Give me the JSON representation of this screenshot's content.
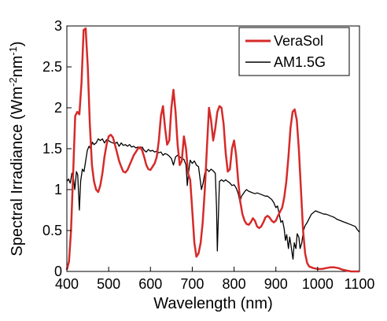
{
  "chart_data": {
    "type": "line",
    "xlabel": "Wavelength (nm)",
    "ylabel_parts": {
      "main": "Spectral Irradiance (Wm",
      "sup1": "-2",
      "mid": "nm",
      "sup2": "-1",
      "end": ")"
    },
    "xlim": [
      400,
      1100
    ],
    "ylim": [
      0,
      3
    ],
    "xticks": [
      400,
      500,
      600,
      700,
      800,
      900,
      1000,
      1100
    ],
    "yticks": [
      0,
      0.5,
      1,
      1.5,
      2,
      2.5,
      3
    ],
    "ytick_labels": [
      "0",
      "0.5",
      "1",
      "1.5",
      "2",
      "2.5",
      "3"
    ],
    "legend_position": "top-right",
    "grid": false,
    "series": [
      {
        "name": "VeraSol",
        "color": "#d62a2a",
        "points": [
          [
            400,
            0.02
          ],
          [
            405,
            0.12
          ],
          [
            410,
            0.5
          ],
          [
            415,
            1.2
          ],
          [
            420,
            1.9
          ],
          [
            425,
            1.95
          ],
          [
            430,
            1.92
          ],
          [
            435,
            2.3
          ],
          [
            440,
            2.95
          ],
          [
            445,
            2.97
          ],
          [
            450,
            2.5
          ],
          [
            455,
            1.8
          ],
          [
            460,
            1.3
          ],
          [
            465,
            1.1
          ],
          [
            470,
            1.0
          ],
          [
            475,
            0.97
          ],
          [
            480,
            1.05
          ],
          [
            485,
            1.2
          ],
          [
            490,
            1.4
          ],
          [
            495,
            1.55
          ],
          [
            500,
            1.65
          ],
          [
            505,
            1.67
          ],
          [
            510,
            1.64
          ],
          [
            515,
            1.55
          ],
          [
            520,
            1.45
          ],
          [
            525,
            1.35
          ],
          [
            530,
            1.28
          ],
          [
            535,
            1.22
          ],
          [
            540,
            1.21
          ],
          [
            545,
            1.24
          ],
          [
            550,
            1.3
          ],
          [
            555,
            1.36
          ],
          [
            560,
            1.42
          ],
          [
            565,
            1.46
          ],
          [
            570,
            1.5
          ],
          [
            575,
            1.52
          ],
          [
            580,
            1.48
          ],
          [
            585,
            1.4
          ],
          [
            590,
            1.3
          ],
          [
            595,
            1.25
          ],
          [
            600,
            1.24
          ],
          [
            605,
            1.28
          ],
          [
            610,
            1.32
          ],
          [
            615,
            1.4
          ],
          [
            620,
            1.6
          ],
          [
            625,
            1.9
          ],
          [
            630,
            2.02
          ],
          [
            635,
            1.75
          ],
          [
            640,
            1.55
          ],
          [
            645,
            1.6
          ],
          [
            650,
            2.0
          ],
          [
            655,
            2.22
          ],
          [
            660,
            1.95
          ],
          [
            665,
            1.55
          ],
          [
            670,
            1.3
          ],
          [
            675,
            1.35
          ],
          [
            680,
            1.65
          ],
          [
            685,
            1.5
          ],
          [
            690,
            1.2
          ],
          [
            695,
            1.12
          ],
          [
            700,
            0.75
          ],
          [
            705,
            0.35
          ],
          [
            710,
            0.18
          ],
          [
            715,
            0.22
          ],
          [
            720,
            0.35
          ],
          [
            725,
            0.6
          ],
          [
            730,
            1.0
          ],
          [
            735,
            1.5
          ],
          [
            740,
            2.0
          ],
          [
            745,
            1.85
          ],
          [
            750,
            1.6
          ],
          [
            755,
            1.75
          ],
          [
            760,
            1.95
          ],
          [
            765,
            2.02
          ],
          [
            770,
            2.0
          ],
          [
            775,
            1.8
          ],
          [
            780,
            1.45
          ],
          [
            785,
            1.22
          ],
          [
            790,
            1.25
          ],
          [
            795,
            1.5
          ],
          [
            800,
            1.6
          ],
          [
            805,
            1.42
          ],
          [
            810,
            1.1
          ],
          [
            815,
            0.85
          ],
          [
            820,
            0.7
          ],
          [
            825,
            0.62
          ],
          [
            830,
            0.58
          ],
          [
            835,
            0.57
          ],
          [
            840,
            0.6
          ],
          [
            845,
            0.65
          ],
          [
            850,
            0.62
          ],
          [
            855,
            0.55
          ],
          [
            860,
            0.53
          ],
          [
            865,
            0.55
          ],
          [
            870,
            0.6
          ],
          [
            875,
            0.66
          ],
          [
            880,
            0.68
          ],
          [
            885,
            0.66
          ],
          [
            890,
            0.62
          ],
          [
            895,
            0.6
          ],
          [
            900,
            0.62
          ],
          [
            905,
            0.68
          ],
          [
            910,
            0.73
          ],
          [
            915,
            0.78
          ],
          [
            920,
            0.9
          ],
          [
            925,
            1.1
          ],
          [
            930,
            1.4
          ],
          [
            935,
            1.75
          ],
          [
            940,
            1.95
          ],
          [
            945,
            1.98
          ],
          [
            950,
            1.85
          ],
          [
            955,
            1.5
          ],
          [
            960,
            1.0
          ],
          [
            965,
            0.5
          ],
          [
            970,
            0.22
          ],
          [
            975,
            0.1
          ],
          [
            980,
            0.06
          ],
          [
            990,
            0.04
          ],
          [
            1000,
            0.03
          ],
          [
            1010,
            0.03
          ],
          [
            1020,
            0.04
          ],
          [
            1030,
            0.05
          ],
          [
            1040,
            0.05
          ],
          [
            1050,
            0.04
          ],
          [
            1060,
            0.02
          ],
          [
            1070,
            0.01
          ],
          [
            1080,
            0.0
          ],
          [
            1090,
            0.0
          ],
          [
            1100,
            0.0
          ]
        ]
      },
      {
        "name": "AM1.5G",
        "color": "#000000",
        "points": [
          [
            400,
            1.1
          ],
          [
            404,
            1.13
          ],
          [
            408,
            1.08
          ],
          [
            412,
            1.2
          ],
          [
            415,
            1.17
          ],
          [
            419,
            1.0
          ],
          [
            423,
            1.22
          ],
          [
            426,
            1.18
          ],
          [
            430,
            0.75
          ],
          [
            433,
            1.1
          ],
          [
            437,
            1.25
          ],
          [
            441,
            1.22
          ],
          [
            445,
            1.35
          ],
          [
            449,
            1.48
          ],
          [
            453,
            1.53
          ],
          [
            457,
            1.5
          ],
          [
            461,
            1.58
          ],
          [
            465,
            1.55
          ],
          [
            470,
            1.57
          ],
          [
            475,
            1.62
          ],
          [
            480,
            1.6
          ],
          [
            485,
            1.62
          ],
          [
            490,
            1.57
          ],
          [
            495,
            1.61
          ],
          [
            500,
            1.6
          ],
          [
            505,
            1.58
          ],
          [
            510,
            1.57
          ],
          [
            515,
            1.56
          ],
          [
            520,
            1.58
          ],
          [
            525,
            1.53
          ],
          [
            530,
            1.57
          ],
          [
            535,
            1.54
          ],
          [
            540,
            1.55
          ],
          [
            545,
            1.53
          ],
          [
            550,
            1.55
          ],
          [
            555,
            1.52
          ],
          [
            560,
            1.53
          ],
          [
            565,
            1.51
          ],
          [
            570,
            1.52
          ],
          [
            575,
            1.5
          ],
          [
            580,
            1.52
          ],
          [
            585,
            1.48
          ],
          [
            590,
            1.46
          ],
          [
            595,
            1.49
          ],
          [
            600,
            1.47
          ],
          [
            605,
            1.48
          ],
          [
            610,
            1.46
          ],
          [
            615,
            1.47
          ],
          [
            620,
            1.45
          ],
          [
            625,
            1.46
          ],
          [
            630,
            1.42
          ],
          [
            635,
            1.44
          ],
          [
            640,
            1.43
          ],
          [
            645,
            1.41
          ],
          [
            650,
            1.38
          ],
          [
            655,
            1.3
          ],
          [
            660,
            1.4
          ],
          [
            665,
            1.42
          ],
          [
            670,
            1.4
          ],
          [
            675,
            1.38
          ],
          [
            680,
            1.37
          ],
          [
            685,
            1.3
          ],
          [
            688,
            1.05
          ],
          [
            691,
            1.2
          ],
          [
            695,
            1.36
          ],
          [
            700,
            1.32
          ],
          [
            705,
            1.35
          ],
          [
            710,
            1.3
          ],
          [
            715,
            1.28
          ],
          [
            719,
            1.12
          ],
          [
            722,
            1.0
          ],
          [
            726,
            1.08
          ],
          [
            730,
            1.2
          ],
          [
            735,
            1.25
          ],
          [
            740,
            1.22
          ],
          [
            745,
            1.25
          ],
          [
            750,
            1.23
          ],
          [
            755,
            1.2
          ],
          [
            758,
            0.78
          ],
          [
            760,
            0.25
          ],
          [
            762,
            0.6
          ],
          [
            765,
            1.1
          ],
          [
            770,
            1.12
          ],
          [
            775,
            1.1
          ],
          [
            780,
            1.12
          ],
          [
            785,
            1.1
          ],
          [
            790,
            1.08
          ],
          [
            795,
            1.05
          ],
          [
            800,
            1.06
          ],
          [
            805,
            1.02
          ],
          [
            810,
            0.95
          ],
          [
            814,
            0.85
          ],
          [
            818,
            0.92
          ],
          [
            822,
            0.95
          ],
          [
            826,
            0.98
          ],
          [
            830,
            1.0
          ],
          [
            835,
            0.98
          ],
          [
            840,
            0.97
          ],
          [
            845,
            0.96
          ],
          [
            850,
            0.95
          ],
          [
            855,
            0.96
          ],
          [
            860,
            0.95
          ],
          [
            865,
            0.94
          ],
          [
            870,
            0.93
          ],
          [
            875,
            0.92
          ],
          [
            880,
            0.92
          ],
          [
            885,
            0.9
          ],
          [
            890,
            0.88
          ],
          [
            895,
            0.84
          ],
          [
            900,
            0.78
          ],
          [
            904,
            0.8
          ],
          [
            908,
            0.7
          ],
          [
            912,
            0.6
          ],
          [
            916,
            0.62
          ],
          [
            920,
            0.52
          ],
          [
            923,
            0.38
          ],
          [
            926,
            0.45
          ],
          [
            930,
            0.28
          ],
          [
            933,
            0.42
          ],
          [
            936,
            0.33
          ],
          [
            939,
            0.22
          ],
          [
            941,
            0.15
          ],
          [
            944,
            0.35
          ],
          [
            948,
            0.28
          ],
          [
            951,
            0.46
          ],
          [
            955,
            0.42
          ],
          [
            958,
            0.28
          ],
          [
            962,
            0.35
          ],
          [
            966,
            0.5
          ],
          [
            970,
            0.56
          ],
          [
            975,
            0.6
          ],
          [
            980,
            0.65
          ],
          [
            985,
            0.7
          ],
          [
            990,
            0.72
          ],
          [
            995,
            0.74
          ],
          [
            1000,
            0.73
          ],
          [
            1005,
            0.72
          ],
          [
            1010,
            0.71
          ],
          [
            1015,
            0.7
          ],
          [
            1020,
            0.7
          ],
          [
            1025,
            0.69
          ],
          [
            1030,
            0.68
          ],
          [
            1035,
            0.67
          ],
          [
            1040,
            0.66
          ],
          [
            1045,
            0.64
          ],
          [
            1050,
            0.63
          ],
          [
            1055,
            0.62
          ],
          [
            1060,
            0.61
          ],
          [
            1065,
            0.6
          ],
          [
            1070,
            0.59
          ],
          [
            1075,
            0.58
          ],
          [
            1080,
            0.57
          ],
          [
            1085,
            0.56
          ],
          [
            1090,
            0.55
          ],
          [
            1095,
            0.51
          ],
          [
            1100,
            0.48
          ]
        ]
      }
    ]
  }
}
